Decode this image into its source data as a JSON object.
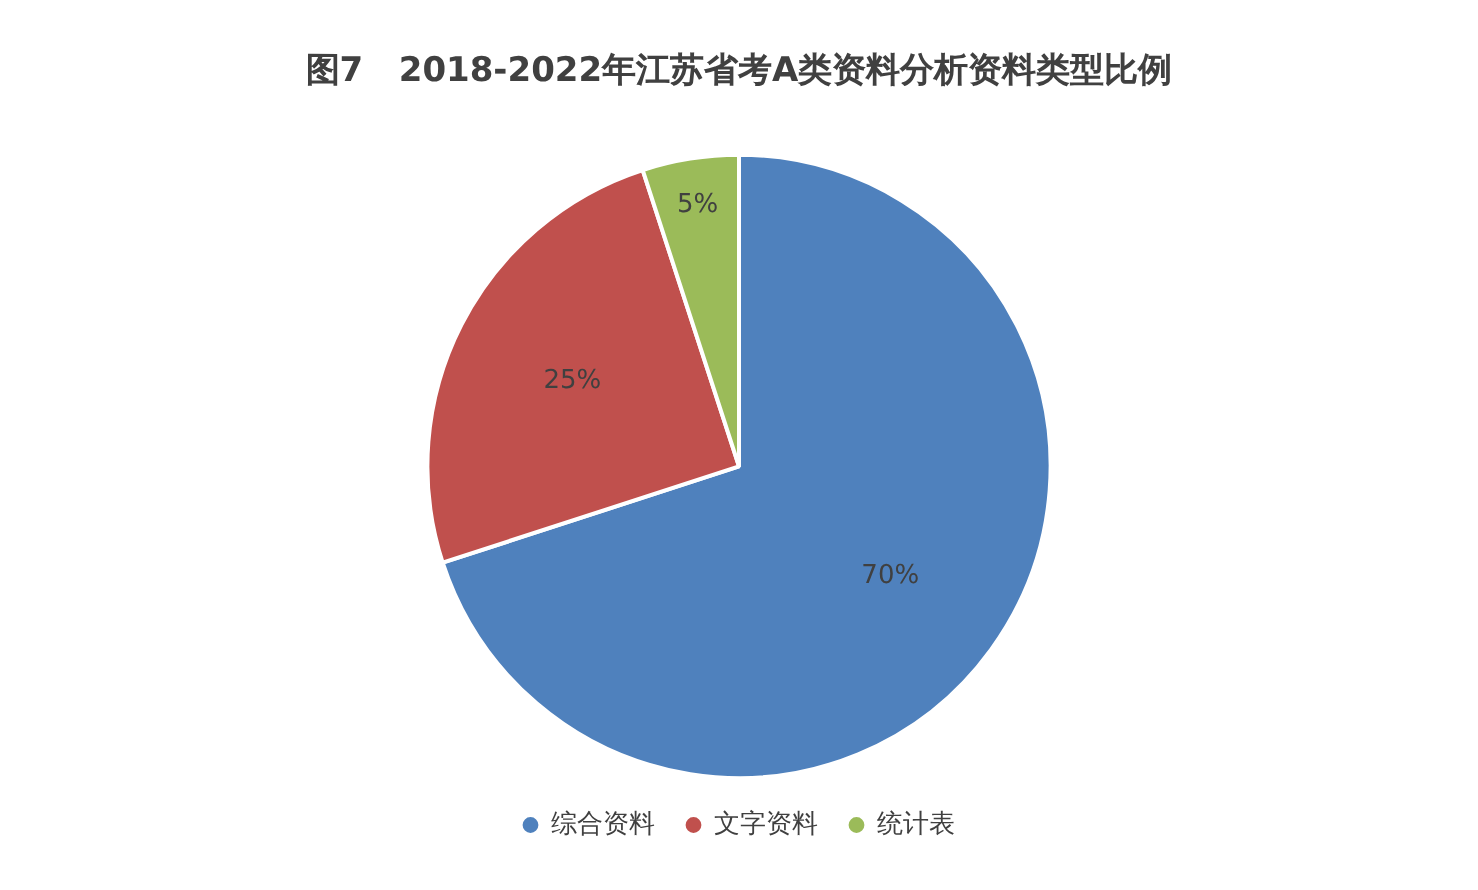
{
  "chart_data": {
    "type": "pie",
    "title": "图7   2018-2022年江苏省考A类资料分析资料类型比例",
    "categories": [
      "综合资料",
      "文字资料",
      "统计表"
    ],
    "values": [
      70,
      25,
      5
    ],
    "colors": [
      "#4f81bd",
      "#c0504d",
      "#9bbb59"
    ],
    "value_labels": [
      "70%",
      "25%",
      "5%"
    ],
    "legend": "bottom"
  }
}
